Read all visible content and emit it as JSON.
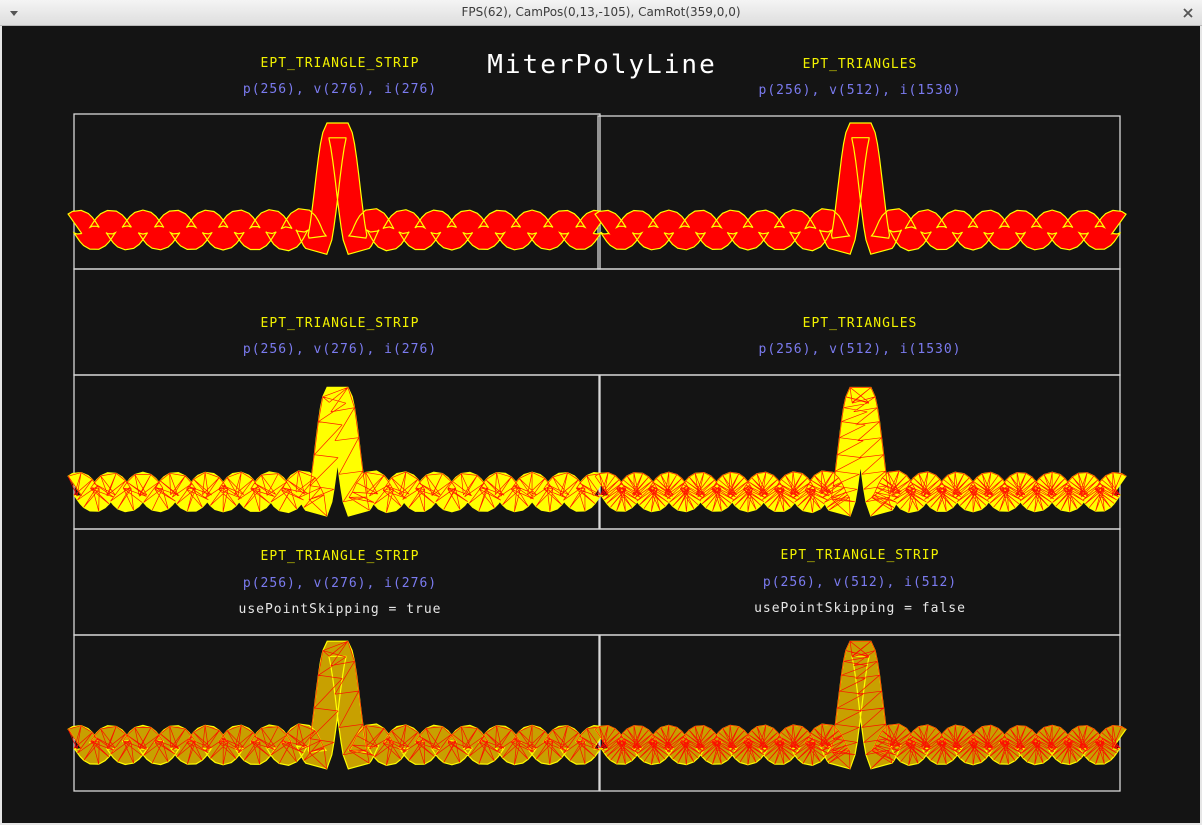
{
  "window": {
    "title": "FPS(62), CamPos(0,13,-105), CamRot(359,0,0)",
    "menu_icon": "chevron-down-icon",
    "close_icon": "close-icon"
  },
  "scene": {
    "heading": "MiterPolyLine",
    "background": "#141414",
    "panels": [
      {
        "mode": "EPT_TRIANGLE_STRIP",
        "stats": "p(256), v(276), i(276)",
        "note": "",
        "render": "solid"
      },
      {
        "mode": "EPT_TRIANGLES",
        "stats": "p(256), v(512), i(1530)",
        "note": "",
        "render": "solid"
      },
      {
        "mode": "EPT_TRIANGLE_STRIP",
        "stats": "p(256), v(276), i(276)",
        "note": "",
        "render": "wire-strip"
      },
      {
        "mode": "EPT_TRIANGLES",
        "stats": "p(256), v(512), i(1530)",
        "note": "",
        "render": "wire-tris"
      },
      {
        "mode": "EPT_TRIANGLE_STRIP",
        "stats": "p(256), v(276), i(276)",
        "note": "usePointSkipping = true",
        "render": "wire-strip-dark"
      },
      {
        "mode": "EPT_TRIANGLE_STRIP",
        "stats": "p(256), v(512), i(512)",
        "note": "usePointSkipping = false",
        "render": "wire-tris-dark"
      }
    ],
    "colors": {
      "fill_solid": "#ff0000",
      "outline": "#ffff00",
      "fill_yellow": "#ffff00",
      "fill_olive": "#c8a000",
      "wire": "#ff0000",
      "label": "#f2f200",
      "stats": "#7b7bf0"
    }
  }
}
